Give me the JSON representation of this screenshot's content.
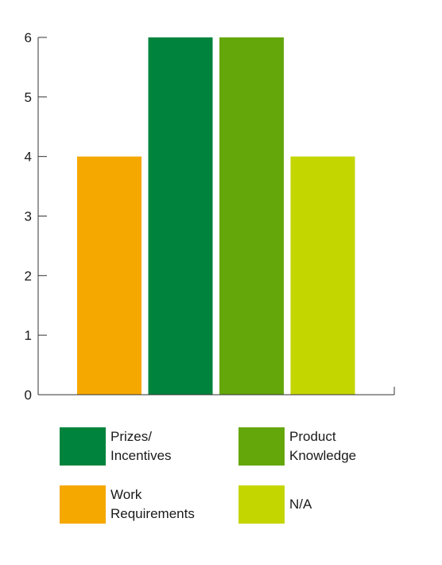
{
  "chart_data": {
    "type": "bar",
    "categories": [
      "Work Requirements",
      "Prizes/\nIncentives",
      "Product\nKnowledge",
      "N/A"
    ],
    "values": [
      4,
      6,
      6,
      4
    ],
    "colors": [
      "#f5a800",
      "#00843d",
      "#64a70b",
      "#c4d600"
    ],
    "ylim": [
      0,
      6
    ],
    "yticks": [
      "0",
      "1",
      "2",
      "3",
      "4",
      "5",
      "6"
    ],
    "grid": false,
    "title": "",
    "xlabel": "",
    "ylabel": ""
  },
  "legend": {
    "placement": "bottom",
    "items": [
      {
        "label": "Prizes/\nIncentives",
        "color": "#00843d"
      },
      {
        "label": "Product\nKnowledge",
        "color": "#64a70b"
      },
      {
        "label": "Work\nRequirements",
        "color": "#f5a800"
      },
      {
        "label": "N/A",
        "color": "#c4d600"
      }
    ]
  }
}
